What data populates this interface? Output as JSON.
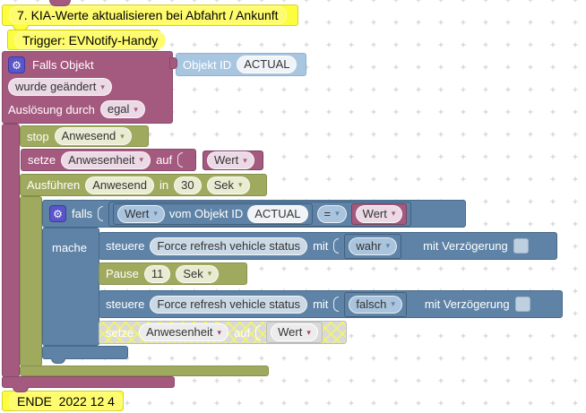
{
  "icons": {
    "gear": "⚙",
    "dropdown_arrow": "▾"
  },
  "colors": {
    "magenta": "#a4597f",
    "olive": "#a0aa5e",
    "steel_blue": "#5e83a6",
    "light_blue": "#a9c6e1",
    "comment_yellow": "#fdfd40",
    "disabled_gray": "#d9d9d9"
  },
  "comments": {
    "title": "7. KIA-Werte aktualisieren bei Abfahrt / Ankunft",
    "trigger": "Trigger: EVNotify-Handy",
    "end": "ENDE  2022 12 4"
  },
  "trigger_block": {
    "label": "Falls Objekt",
    "object_id_label": "Objekt ID",
    "object_id_value": "ACTUAL",
    "change_dropdown": "wurde geändert",
    "condition_label": "Auslösung durch",
    "condition_dropdown": "egal"
  },
  "stop_block": {
    "label": "stop",
    "timeout_dropdown": "Anwesend"
  },
  "set_block": {
    "label_set": "setze",
    "state_dropdown": "Anwesenheit",
    "label_to": "auf",
    "value_dropdown": "Wert"
  },
  "timeout_block": {
    "label": "Ausführen",
    "name_field": "Anwesend",
    "label_in": "in",
    "delay_value": "30",
    "unit_dropdown": "Sek"
  },
  "if_block": {
    "label_if": "falls",
    "label_do": "mache",
    "condition": {
      "left_dropdown": "Wert",
      "of_object_label": "vom Objekt ID",
      "object_id_value": "ACTUAL",
      "operator": "=",
      "right_dropdown": "Wert"
    }
  },
  "control_true_block": {
    "label_control": "steuere",
    "object_field": "Force refresh vehicle status",
    "label_with": "mit",
    "value_dropdown": "wahr",
    "delay_label": "mit Verzögerung"
  },
  "pause_block": {
    "label": "Pause",
    "value": "11",
    "unit_dropdown": "Sek"
  },
  "control_false_block": {
    "label_control": "steuere",
    "object_field": "Force refresh vehicle status",
    "label_with": "mit",
    "value_dropdown": "falsch",
    "delay_label": "mit Verzögerung"
  },
  "disabled_set_block": {
    "label_set": "setze",
    "state_dropdown": "Anwesenheit",
    "label_to": "auf",
    "value_dropdown": "Wert"
  }
}
